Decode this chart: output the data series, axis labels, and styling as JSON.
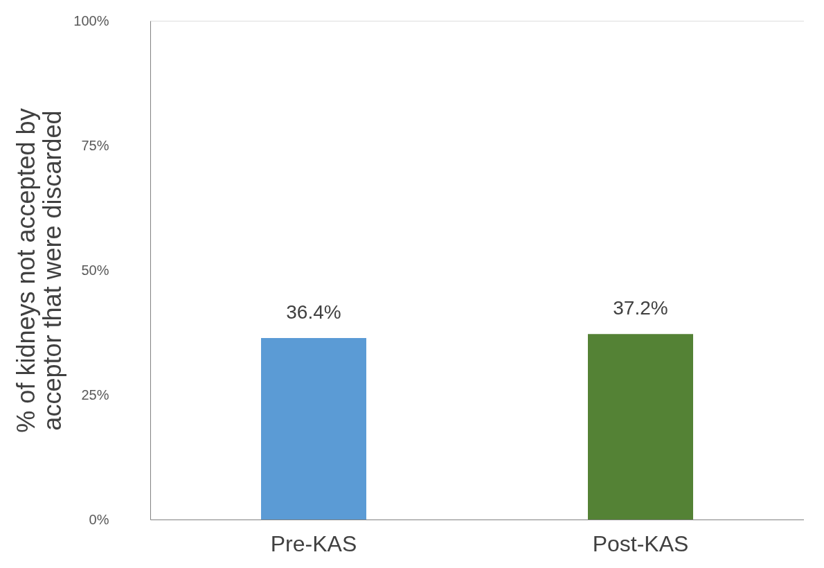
{
  "chart_data": {
    "type": "bar",
    "ylabel": "% of kidneys not accepted by acceptor that were discarded",
    "categories": [
      "Pre-KAS",
      "Post-KAS"
    ],
    "values": [
      36.4,
      37.2
    ],
    "colors": [
      "#5b9bd5",
      "#548235"
    ],
    "value_labels": [
      "36.4%",
      "37.2%"
    ],
    "ylim": [
      0,
      100
    ],
    "yticks": [
      {
        "value": 0,
        "label": "0%"
      },
      {
        "value": 25,
        "label": "25%"
      },
      {
        "value": 50,
        "label": "50%"
      },
      {
        "value": 75,
        "label": "75%"
      },
      {
        "value": 100,
        "label": "100%"
      }
    ],
    "grid": false
  }
}
